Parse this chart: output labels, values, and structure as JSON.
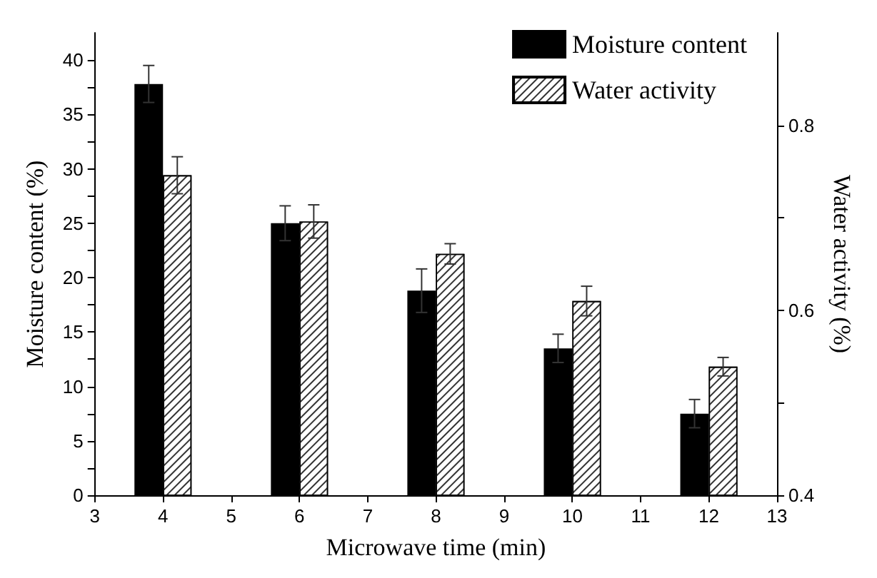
{
  "chart_data": {
    "type": "bar",
    "xlabel": "Microwave time (min)",
    "ylabel": "Moisture content (%)",
    "y2label": "Water activity (%)",
    "x": [
      4,
      6,
      8,
      10,
      12
    ],
    "series": [
      {
        "name": "Moisture content",
        "color": "#000000",
        "values": [
          37.8,
          25.0,
          18.8,
          13.5,
          7.5
        ],
        "errors": [
          1.7,
          1.6,
          2.0,
          1.3,
          1.3
        ]
      },
      {
        "name": "Water activity",
        "color": "#ffffff",
        "axis": "y2",
        "values": [
          0.746,
          0.696,
          0.661,
          0.61,
          0.539
        ],
        "errors": [
          0.02,
          0.018,
          0.011,
          0.016,
          0.01
        ]
      }
    ],
    "xlim": [
      3,
      13
    ],
    "xticks": [
      3,
      4,
      5,
      6,
      7,
      8,
      9,
      10,
      11,
      12,
      13
    ],
    "ylim": [
      0,
      42.5
    ],
    "yticks": [
      0,
      {
        "value": 2.5,
        "label": null
      },
      5,
      {
        "value": 7.5,
        "label": null
      },
      10,
      {
        "value": 12.5,
        "label": null
      },
      15,
      {
        "value": 17.5,
        "label": null
      },
      20,
      {
        "value": 22.5,
        "label": null
      },
      25,
      {
        "value": 27.5,
        "label": null
      },
      30,
      {
        "value": 32.5,
        "label": null
      },
      35,
      {
        "value": 37.5,
        "label": null
      },
      40
    ],
    "y2lim": [
      0.4,
      0.9
    ],
    "y2ticks": [
      0.4,
      {
        "value": 0.5,
        "label": null
      },
      0.6,
      {
        "value": 0.7,
        "label": null
      },
      0.8
    ],
    "legend": "top right",
    "grid": false
  }
}
